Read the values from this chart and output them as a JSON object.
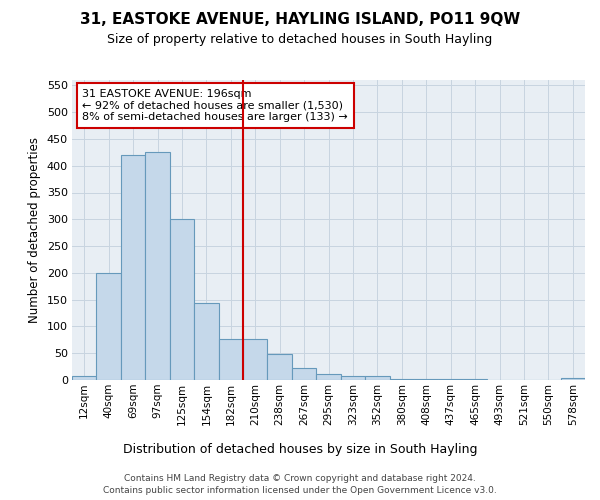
{
  "title1": "31, EASTOKE AVENUE, HAYLING ISLAND, PO11 9QW",
  "title2": "Size of property relative to detached houses in South Hayling",
  "xlabel": "Distribution of detached houses by size in South Hayling",
  "ylabel": "Number of detached properties",
  "footer1": "Contains HM Land Registry data © Crown copyright and database right 2024.",
  "footer2": "Contains public sector information licensed under the Open Government Licence v3.0.",
  "bar_labels": [
    "12sqm",
    "40sqm",
    "69sqm",
    "97sqm",
    "125sqm",
    "154sqm",
    "182sqm",
    "210sqm",
    "238sqm",
    "267sqm",
    "295sqm",
    "323sqm",
    "352sqm",
    "380sqm",
    "408sqm",
    "437sqm",
    "465sqm",
    "493sqm",
    "521sqm",
    "550sqm",
    "578sqm"
  ],
  "bar_values": [
    8,
    200,
    420,
    425,
    300,
    143,
    77,
    77,
    48,
    23,
    12,
    8,
    8,
    2,
    2,
    2,
    2,
    0,
    0,
    0,
    3
  ],
  "bar_color": "#c5d8ea",
  "bar_edge_color": "#6699bb",
  "grid_color": "#c8d4e0",
  "vline_x": 6.5,
  "vline_color": "#cc0000",
  "annotation_text": "31 EASTOKE AVENUE: 196sqm\n← 92% of detached houses are smaller (1,530)\n8% of semi-detached houses are larger (133) →",
  "annotation_box_color": "#ffffff",
  "annotation_box_edge": "#cc0000",
  "ylim": [
    0,
    560
  ],
  "yticks": [
    0,
    50,
    100,
    150,
    200,
    250,
    300,
    350,
    400,
    450,
    500,
    550
  ],
  "background_color": "#ffffff",
  "plot_bg_color": "#e8eef4"
}
